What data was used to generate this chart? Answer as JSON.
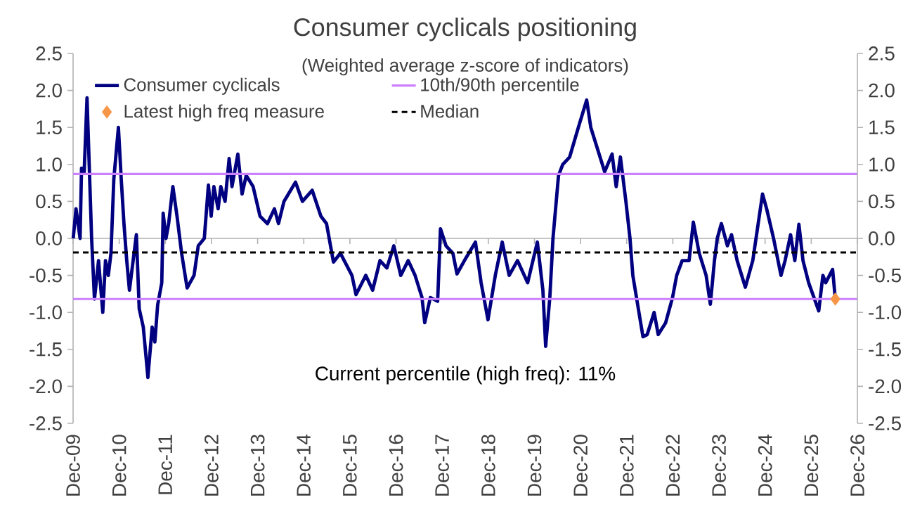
{
  "chart_data": {
    "type": "line",
    "title": "Consumer cyclicals positioning",
    "subtitle": "(Weighted average z-score of indicators)",
    "series": [
      {
        "name": "Consumer cyclicals",
        "color": "#000080",
        "x": [
          "2009-12-02",
          "2009-12-24",
          "2010-01-26",
          "2010-02-07",
          "2010-02-28",
          "2010-03-20",
          "2010-04-26",
          "2010-05-18",
          "2010-06-20",
          "2010-07-23",
          "2010-08-14",
          "2010-09-06",
          "2010-09-27",
          "2010-10-19",
          "2010-11-25",
          "2010-12-17",
          "2011-01-08",
          "2011-01-30",
          "2011-02-21",
          "2011-04-15",
          "2011-05-07",
          "2011-06-09",
          "2011-07-15",
          "2011-08-18",
          "2011-09-09",
          "2011-10-01",
          "2011-11-03",
          "2011-11-14",
          "2011-12-06",
          "2011-12-27",
          "2012-01-30",
          "2012-03-02",
          "2012-04-08",
          "2012-05-21",
          "2012-07-15",
          "2012-08-18",
          "2012-10-05",
          "2012-11-07",
          "2012-11-29",
          "2012-12-20",
          "2013-01-23",
          "2013-02-14",
          "2013-03-17",
          "2013-04-19",
          "2013-05-11",
          "2013-06-27",
          "2013-07-30",
          "2013-09-02",
          "2013-10-26",
          "2013-12-20",
          "2014-02-18",
          "2014-04-12",
          "2014-05-14",
          "2014-06-27",
          "2014-09-27",
          "2014-11-21",
          "2015-02-07",
          "2015-04-15",
          "2015-05-29",
          "2015-07-23",
          "2015-09-17",
          "2015-12-17",
          "2016-01-19",
          "2016-04-05",
          "2016-05-29",
          "2016-07-26",
          "2016-09-20",
          "2016-11-14",
          "2017-01-08",
          "2017-03-06",
          "2017-04-30",
          "2017-06-24",
          "2017-07-15",
          "2017-08-29",
          "2017-10-26",
          "2017-11-18",
          "2018-01-01",
          "2018-02-25",
          "2018-03-27",
          "2018-05-25",
          "2018-08-21",
          "2018-10-05",
          "2018-11-29",
          "2019-01-26",
          "2019-03-20",
          "2019-05-14",
          "2019-07-19",
          "2019-10-08",
          "2019-12-24",
          "2020-02-07",
          "2020-02-29",
          "2020-04-01",
          "2020-04-26",
          "2020-06-09",
          "2020-07-12",
          "2020-09-06",
          "2020-11-14",
          "2021-01-19",
          "2021-02-21",
          "2021-04-15",
          "2021-06-09",
          "2021-08-07",
          "2021-09-09",
          "2021-10-12",
          "2021-11-25",
          "2021-12-27",
          "2022-01-19",
          "2022-04-08",
          "2022-05-11",
          "2022-07-05",
          "2022-08-07",
          "2022-10-05",
          "2022-11-29",
          "2023-01-01",
          "2023-02-14",
          "2023-04-08",
          "2023-05-11",
          "2023-06-27",
          "2023-08-21",
          "2023-09-24",
          "2023-10-26",
          "2023-11-18",
          "2023-12-20",
          "2024-02-07",
          "2024-03-09",
          "2024-04-23",
          "2024-06-27",
          "2024-08-25",
          "2024-11-11",
          "2024-12-13",
          "2025-02-07",
          "2025-04-05",
          "2025-05-07",
          "2025-06-20",
          "2025-07-23",
          "2025-08-25",
          "2025-09-27",
          "2025-11-11",
          "2026-01-30",
          "2026-03-02",
          "2026-03-24",
          "2026-05-18",
          "2026-06-09"
        ],
        "values": [
          0.0,
          0.4,
          0.0,
          0.95,
          0.9,
          1.9,
          0.0,
          -0.82,
          -0.3,
          -1.0,
          -0.3,
          -0.5,
          -0.2,
          0.8,
          1.5,
          0.8,
          0.2,
          -0.3,
          -0.7,
          0.05,
          -0.95,
          -1.2,
          -1.88,
          -1.2,
          -1.4,
          -0.9,
          -0.6,
          0.34,
          0.0,
          0.2,
          0.7,
          0.3,
          -0.2,
          -0.67,
          -0.5,
          -0.1,
          0.0,
          0.72,
          0.3,
          0.7,
          0.4,
          0.7,
          0.5,
          1.08,
          0.7,
          1.14,
          0.6,
          0.85,
          0.7,
          0.3,
          0.2,
          0.4,
          0.2,
          0.5,
          0.76,
          0.5,
          0.65,
          0.3,
          0.2,
          -0.32,
          -0.2,
          -0.5,
          -0.76,
          -0.5,
          -0.7,
          -0.3,
          -0.4,
          -0.1,
          -0.5,
          -0.3,
          -0.5,
          -0.8,
          -1.14,
          -0.8,
          -0.85,
          0.13,
          -0.1,
          -0.2,
          -0.48,
          -0.3,
          -0.05,
          -0.6,
          -1.1,
          -0.5,
          -0.05,
          -0.5,
          -0.3,
          -0.6,
          -0.05,
          -0.7,
          -1.46,
          -0.8,
          0.0,
          0.85,
          1.0,
          1.1,
          1.5,
          1.87,
          1.5,
          1.2,
          0.9,
          1.14,
          0.7,
          1.1,
          0.5,
          0.0,
          -0.5,
          -1.33,
          -1.3,
          -1.0,
          -1.3,
          -1.14,
          -0.8,
          -0.5,
          -0.3,
          -0.3,
          0.22,
          -0.2,
          -0.5,
          -0.89,
          -0.3,
          0.0,
          0.2,
          -0.1,
          0.05,
          -0.3,
          -0.66,
          -0.3,
          0.6,
          0.4,
          0.0,
          -0.5,
          -0.3,
          0.05,
          -0.3,
          0.19,
          -0.3,
          -0.6,
          -0.98,
          -0.5,
          -0.6,
          -0.42,
          -0.82
        ]
      },
      {
        "name": "Latest high freq measure",
        "type": "scatter",
        "marker": "diamond",
        "color": "#f79646",
        "x": [
          "2026-06-09"
        ],
        "values": [
          -0.82
        ]
      }
    ],
    "xlim": [
      "2009-12-01",
      "2026-12-01"
    ],
    "xticks": [
      {
        "value": "2009-12-01",
        "label": "Dec-09"
      },
      {
        "value": "2010-12-01",
        "label": "Dec-10"
      },
      {
        "value": "2011-12-01",
        "label": "Dec-11"
      },
      {
        "value": "2012-12-01",
        "label": "Dec-12"
      },
      {
        "value": "2013-12-01",
        "label": "Dec-13"
      },
      {
        "value": "2014-12-01",
        "label": "Dec-14"
      },
      {
        "value": "2015-12-01",
        "label": "Dec-15"
      },
      {
        "value": "2016-12-01",
        "label": "Dec-16"
      },
      {
        "value": "2017-12-01",
        "label": "Dec-17"
      },
      {
        "value": "2018-12-01",
        "label": "Dec-18"
      },
      {
        "value": "2019-12-01",
        "label": "Dec-19"
      },
      {
        "value": "2020-12-01",
        "label": "Dec-20"
      },
      {
        "value": "2021-12-01",
        "label": "Dec-21"
      },
      {
        "value": "2022-12-01",
        "label": "Dec-22"
      },
      {
        "value": "2023-12-01",
        "label": "Dec-23"
      },
      {
        "value": "2024-12-01",
        "label": "Dec-24"
      },
      {
        "value": "2025-12-01",
        "label": "Dec-25"
      },
      {
        "value": "2026-12-01",
        "label": "Dec-26"
      }
    ],
    "ylim": [
      -2.5,
      2.5
    ],
    "yticks": [
      {
        "value": -2.5,
        "label": "-2.5"
      },
      {
        "value": -2,
        "label": "-2.0"
      },
      {
        "value": -1.5,
        "label": "-1.5"
      },
      {
        "value": -1,
        "label": "-1.0"
      },
      {
        "value": -0.5,
        "label": "-0.5"
      },
      {
        "value": 0,
        "label": "0.0"
      },
      {
        "value": 0.5,
        "label": "0.5"
      },
      {
        "value": 1,
        "label": "1.0"
      },
      {
        "value": 1.5,
        "label": "1.5"
      },
      {
        "value": 2,
        "label": "2.0"
      },
      {
        "value": 2.5,
        "label": "2.5"
      }
    ],
    "y2lim": [
      -2.5,
      2.5
    ],
    "y2ticks": [
      {
        "value": -2.5,
        "label": "-2.5"
      },
      {
        "value": -2,
        "label": "-2.0"
      },
      {
        "value": -1.5,
        "label": "-1.5"
      },
      {
        "value": -1,
        "label": "-1.0"
      },
      {
        "value": -0.5,
        "label": "-0.5"
      },
      {
        "value": 0,
        "label": "0.0"
      },
      {
        "value": 0.5,
        "label": "0.5"
      },
      {
        "value": 1,
        "label": "1.0"
      },
      {
        "value": 1.5,
        "label": "1.5"
      },
      {
        "value": 2,
        "label": "2.0"
      },
      {
        "value": 2.5,
        "label": "2.5"
      }
    ],
    "ref_lines": [
      {
        "axis": "y",
        "value": 0.87,
        "label": "10th/90th percentile",
        "color": "#cc80ff"
      },
      {
        "axis": "y",
        "value": -0.82,
        "color": "#cc80ff"
      },
      {
        "axis": "y",
        "value": -0.19,
        "label": "Median",
        "color": "#000000",
        "line_style": "dashed"
      }
    ],
    "annotations": [
      "Current percentile (high freq): 11%"
    ],
    "legend": "top left"
  }
}
